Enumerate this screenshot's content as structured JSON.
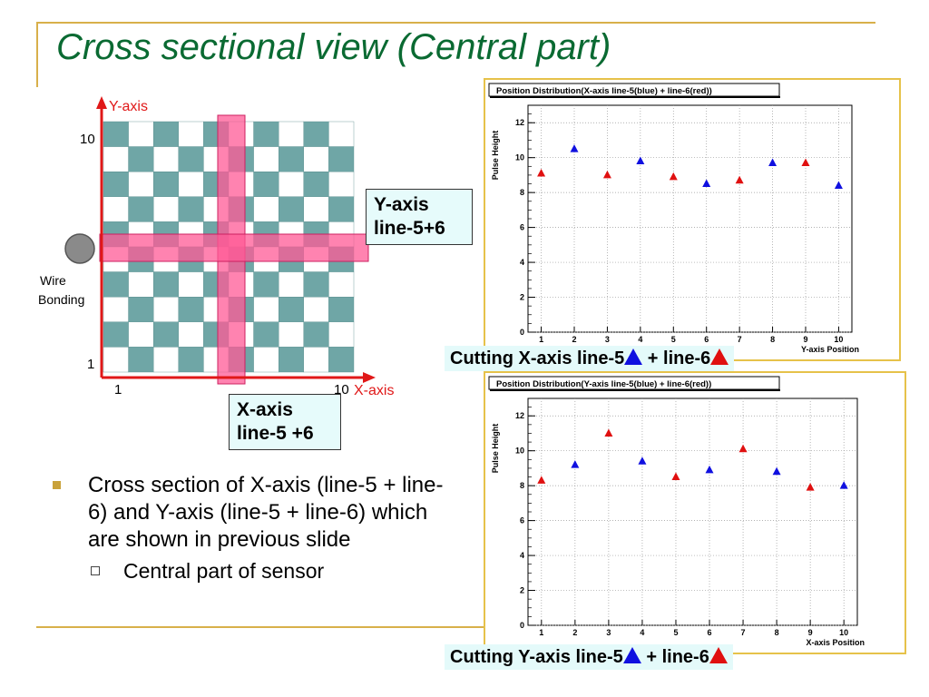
{
  "slide": {
    "title": "Cross sectional view (Central part)",
    "bullet": "Cross section of X-axis (line-5 + line-6) and Y-axis (line-5 + line-6) which are shown in previous slide",
    "sub_bullet": "Central part of sensor"
  },
  "diagram": {
    "y_axis_label": "Y-axis",
    "x_axis_label": "X-axis",
    "y_tick_top": "10",
    "y_tick_bottom": "1",
    "x_tick_left": "1",
    "x_tick_right": "10",
    "wire_label_1": "Wire",
    "wire_label_2": "Bonding",
    "y_line_box_1": "Y-axis",
    "y_line_box_2": "line-5+6",
    "x_line_box_1": "X-axis",
    "x_line_box_2": "line-5 +6",
    "colors": {
      "checker": "#6fa6a6",
      "highlight": "#ff5a96",
      "axis": "#e01818"
    }
  },
  "captions": {
    "top_prefix": "Cutting X-axis line-5",
    "top_mid": " + line-6",
    "bottom_prefix": "Cutting Y-axis line-5",
    "bottom_mid": " + line-6"
  },
  "chart_data": [
    {
      "type": "scatter",
      "title": "Position Distribution(X-axis line-5(blue) + line-6(red))",
      "xlabel": "Y-axis Position",
      "ylabel": "Pulse Height",
      "xlim": [
        0.6,
        10.4
      ],
      "ylim": [
        0,
        13
      ],
      "x_ticks": [
        1,
        2,
        3,
        4,
        5,
        6,
        7,
        8,
        9,
        10
      ],
      "y_ticks": [
        0,
        2,
        4,
        6,
        8,
        10,
        12
      ],
      "grid": true,
      "series": [
        {
          "color": "#1010e0",
          "x": [
            2,
            4,
            6,
            8,
            10
          ],
          "y": [
            10.5,
            9.8,
            8.5,
            9.7,
            8.4
          ]
        },
        {
          "color": "#e01010",
          "x": [
            1,
            3,
            5,
            7,
            9
          ],
          "y": [
            9.1,
            9.0,
            8.9,
            8.7,
            9.7
          ]
        }
      ]
    },
    {
      "type": "scatter",
      "title": "Position Distribution(Y-axis line-5(blue) + line-6(red))",
      "xlabel": "X-axis Position",
      "ylabel": "Pulse Height",
      "xlim": [
        0.6,
        10.4
      ],
      "ylim": [
        0,
        13
      ],
      "x_ticks": [
        1,
        2,
        3,
        4,
        5,
        6,
        7,
        8,
        9,
        10
      ],
      "y_ticks": [
        0,
        2,
        4,
        6,
        8,
        10,
        12
      ],
      "grid": true,
      "series": [
        {
          "color": "#1010e0",
          "x": [
            2,
            4,
            6,
            8,
            10
          ],
          "y": [
            9.2,
            9.4,
            8.9,
            8.8,
            8.0
          ]
        },
        {
          "color": "#e01010",
          "x": [
            1,
            3,
            5,
            7,
            9
          ],
          "y": [
            8.3,
            11.0,
            8.5,
            10.1,
            7.9
          ]
        }
      ]
    }
  ]
}
